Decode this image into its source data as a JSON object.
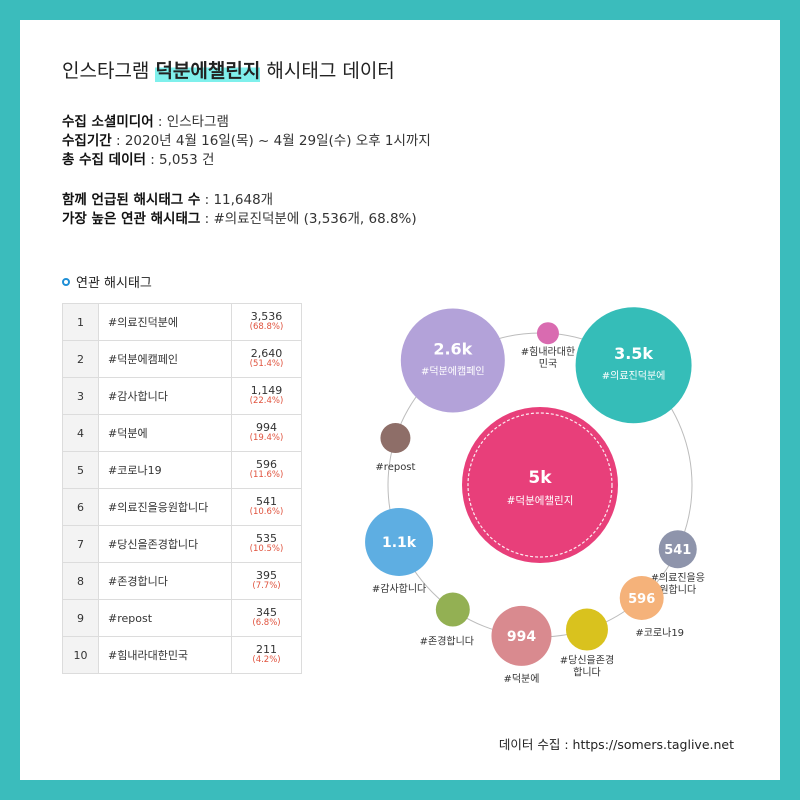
{
  "header": {
    "title_pre": "인스타그램 ",
    "title_highlight": "덕분에챌린지",
    "title_post": " 해시태그 데이터"
  },
  "meta": {
    "media_label": "수집 소셜미디어",
    "media_value": " : 인스타그램",
    "period_label": "수집기간",
    "period_value": " : 2020년 4월 16일(목) ~ 4월 29일(수) 오후 1시까지",
    "total_label": "총 수집 데이터",
    "total_value": " : 5,053 건",
    "mentioned_label": "함께 언급된 해시태그 수",
    "mentioned_value": " : 11,648개",
    "top_label": "가장 높은 연관 해시태그",
    "top_value": " : #의료진덕분에 (3,536개, 68.8%)"
  },
  "section": {
    "label": "연관 해시태그"
  },
  "ranking": [
    {
      "rank": "1",
      "tag": "#의료진덕분에",
      "count": "3,536",
      "pct": "(68.8%)"
    },
    {
      "rank": "2",
      "tag": "#덕분에캠페인",
      "count": "2,640",
      "pct": "(51.4%)"
    },
    {
      "rank": "3",
      "tag": "#감사합니다",
      "count": "1,149",
      "pct": "(22.4%)"
    },
    {
      "rank": "4",
      "tag": "#덕분에",
      "count": "994",
      "pct": "(19.4%)"
    },
    {
      "rank": "5",
      "tag": "#코로나19",
      "count": "596",
      "pct": "(11.6%)"
    },
    {
      "rank": "6",
      "tag": "#의료진을응원합니다",
      "count": "541",
      "pct": "(10.6%)"
    },
    {
      "rank": "7",
      "tag": "#당신을존경합니다",
      "count": "535",
      "pct": "(10.5%)"
    },
    {
      "rank": "8",
      "tag": "#존경합니다",
      "count": "395",
      "pct": "(7.7%)"
    },
    {
      "rank": "9",
      "tag": "#repost",
      "count": "345",
      "pct": "(6.8%)"
    },
    {
      "rank": "10",
      "tag": "#힘내라대한민국",
      "count": "211",
      "pct": "(4.2%)"
    }
  ],
  "chart_data": {
    "type": "bubble",
    "center": {
      "label": "5k",
      "name": "#덕분에챌린지",
      "value": 5053,
      "color": "#e83f7a"
    },
    "bubbles": [
      {
        "label": "3.5k",
        "name": "#의료진덕분에",
        "value": 3536,
        "color": "#35bdb8",
        "inside": true
      },
      {
        "label": "541",
        "name": "#의료진을응\n원합니다",
        "value": 541,
        "color": "#8e94ab",
        "inside": false
      },
      {
        "label": "596",
        "name": "#코로나19",
        "value": 596,
        "color": "#f5b27a",
        "inside": false
      },
      {
        "label": "",
        "name": "#당신을존경\n합니다",
        "value": 535,
        "color": "#d9c21e",
        "inside": false
      },
      {
        "label": "994",
        "name": "#덕분에",
        "value": 994,
        "color": "#d98a8f",
        "inside": false
      },
      {
        "label": "",
        "name": "#존경합니다",
        "value": 395,
        "color": "#93b053",
        "inside": false
      },
      {
        "label": "1.1k",
        "name": "#감사합니다",
        "value": 1149,
        "color": "#5eaee2",
        "inside": false
      },
      {
        "label": "",
        "name": "#repost",
        "value": 345,
        "color": "#8e6e68",
        "inside": false
      },
      {
        "label": "2.6k",
        "name": "#덕분에캠페인",
        "value": 2640,
        "color": "#b3a2d9",
        "inside": true
      },
      {
        "label": "",
        "name": "#힘내라대한\n민국",
        "value": 211,
        "color": "#d96bb0",
        "inside": false
      }
    ]
  },
  "footer": {
    "text": "데이터 수집 : https://somers.taglive.net"
  }
}
